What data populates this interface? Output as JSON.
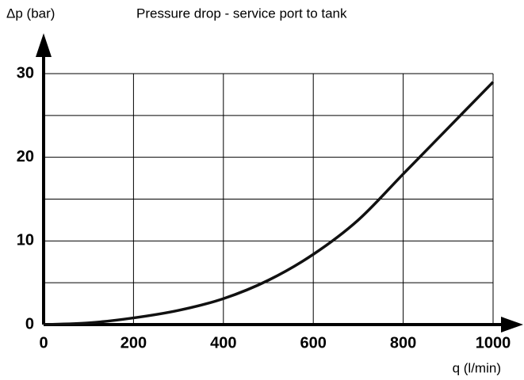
{
  "chart_data": {
    "type": "line",
    "title": "Pressure drop - service port to tank",
    "ylabel": "Δp (bar)",
    "xlabel": "q (l/min)",
    "x": [
      0,
      100,
      200,
      300,
      400,
      500,
      600,
      700,
      800,
      900,
      1000
    ],
    "values": [
      0,
      0.2,
      0.8,
      1.7,
      3.1,
      5.3,
      8.4,
      12.5,
      18,
      23.5,
      29
    ],
    "color": "#111111",
    "xlim": [
      0,
      1000
    ],
    "ylim": [
      0,
      30
    ],
    "xticks": [
      0,
      200,
      400,
      600,
      800,
      1000
    ],
    "yticks": [
      0,
      10,
      20,
      30
    ],
    "yminorticks": [
      5,
      15,
      25
    ],
    "grid": true
  }
}
